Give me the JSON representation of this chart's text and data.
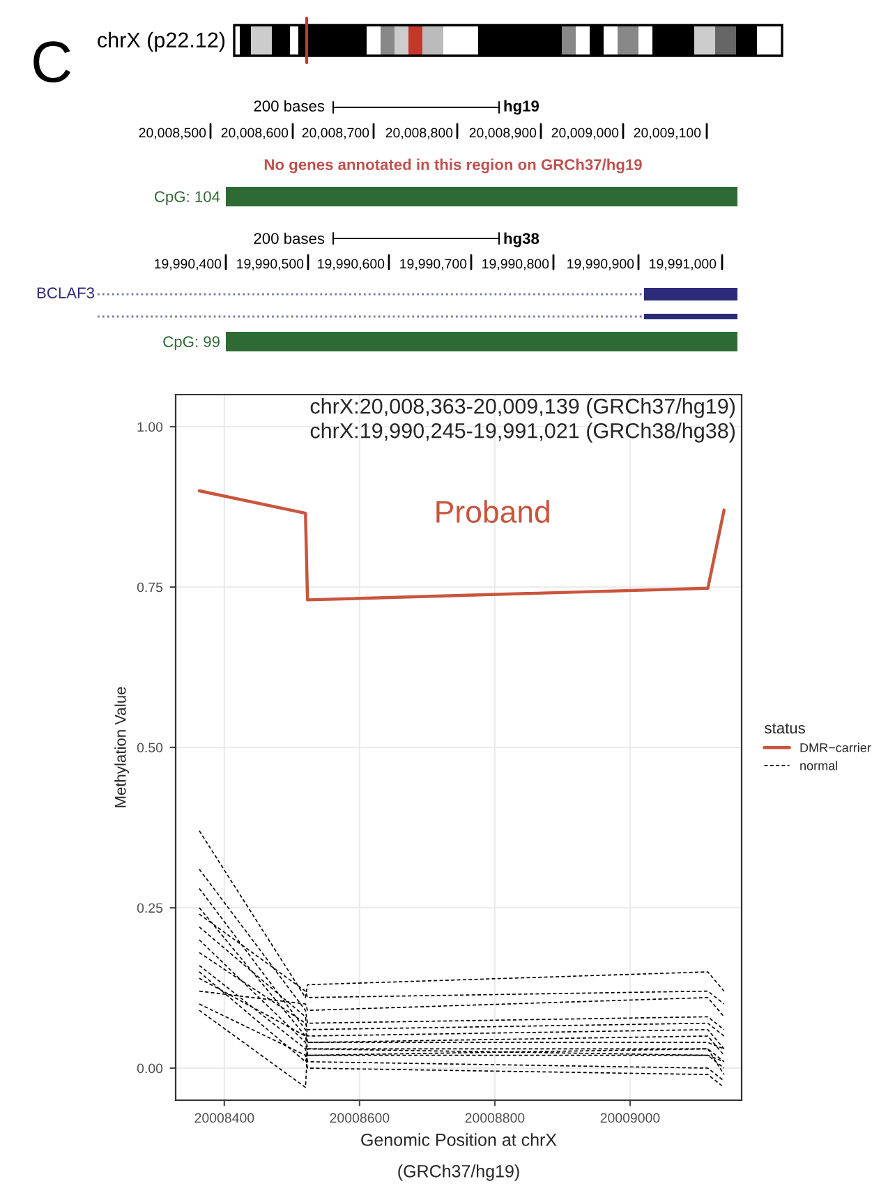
{
  "chart_data": [
    {
      "type": "other",
      "annotations": [
        "C",
        "chrX (p22.12)",
        "200 bases",
        "hg19",
        "20,008,500",
        "20,008,600",
        "20,008,700",
        "20,008,800",
        "20,008,900",
        "20,009,000",
        "20,009,100",
        "No genes annotated in this region on GRCh37/hg19",
        "CpG: 104",
        "200 bases",
        "hg38",
        "19,990,400",
        "19,990,500",
        "19,990,600",
        "19,990,700",
        "19,990,800",
        "19,990,900",
        "19,991,000",
        "BCLAF3",
        "CpG: 99"
      ]
    },
    {
      "type": "line",
      "xlabel": "Genomic Position at chrX\n(GRCh37/hg19)",
      "ylabel": "Methylation Value",
      "legend_title": "status",
      "legend": "right",
      "grid": true,
      "xlim": [
        20008328,
        20009165
      ],
      "xticks": [
        20008400,
        20008600,
        20008800,
        20009000
      ],
      "ylim": [
        -0.05,
        1.05
      ],
      "yticks": [
        {
          "value": 0,
          "label": "0.00"
        },
        {
          "value": 0.25,
          "label": "0.25"
        },
        {
          "value": 0.5,
          "label": "0.50"
        },
        {
          "value": 0.75,
          "label": "0.75"
        },
        {
          "value": 1,
          "label": "1.00"
        }
      ],
      "x": [
        20008363,
        20008520,
        20008523,
        20009115,
        20009139
      ],
      "annotations": [
        "chrX:20,008,363-20,009,139 (GRCh37/hg19)\nchrX:19,990,245-19,991,021 (GRCh38/hg38)",
        "Proband"
      ],
      "series": [
        {
          "name": "DMR−carrier",
          "color": "#c8553d",
          "line_style": "solid",
          "values": [
            0.9,
            0.865,
            0.73,
            0.748,
            0.87
          ]
        },
        {
          "name": "normal",
          "color": "#000000",
          "line_style": "dashed",
          "values": [
            0.28,
            0.06,
            0.04,
            0.05,
            0.02
          ]
        },
        {
          "color": "#000000",
          "line_style": "dashed",
          "values": [
            0.25,
            0.05,
            0.03,
            0.03,
            0.01
          ]
        },
        {
          "color": "#000000",
          "line_style": "dashed",
          "values": [
            0.22,
            0.08,
            0.05,
            0.06,
            0.03
          ]
        },
        {
          "color": "#000000",
          "line_style": "dashed",
          "values": [
            0.2,
            0.04,
            0.02,
            0.02,
            0.0
          ]
        },
        {
          "color": "#000000",
          "line_style": "dashed",
          "values": [
            0.18,
            0.07,
            0.06,
            0.07,
            0.05
          ]
        },
        {
          "color": "#000000",
          "line_style": "dashed",
          "values": [
            0.16,
            0.03,
            0.01,
            0.0,
            -0.02
          ]
        },
        {
          "color": "#000000",
          "line_style": "dashed",
          "values": [
            0.14,
            0.05,
            0.04,
            0.04,
            0.03
          ]
        },
        {
          "color": "#000000",
          "line_style": "dashed",
          "values": [
            0.12,
            0.1,
            0.09,
            0.11,
            0.08
          ]
        },
        {
          "color": "#000000",
          "line_style": "dashed",
          "values": [
            0.1,
            0.02,
            0.0,
            -0.01,
            -0.03
          ]
        },
        {
          "color": "#000000",
          "line_style": "dashed",
          "values": [
            0.31,
            0.09,
            0.07,
            0.08,
            0.06
          ]
        },
        {
          "color": "#000000",
          "line_style": "dashed",
          "values": [
            0.37,
            0.11,
            0.13,
            0.15,
            0.12
          ]
        },
        {
          "color": "#000000",
          "line_style": "dashed",
          "values": [
            0.09,
            -0.03,
            0.03,
            0.02,
            0.01
          ]
        },
        {
          "color": "#000000",
          "line_style": "dashed",
          "values": [
            0.24,
            0.12,
            0.11,
            0.12,
            0.1
          ]
        },
        {
          "color": "#000000",
          "line_style": "dashed",
          "values": [
            0.15,
            0.01,
            0.02,
            0.03,
            -0.01
          ]
        }
      ]
    }
  ]
}
